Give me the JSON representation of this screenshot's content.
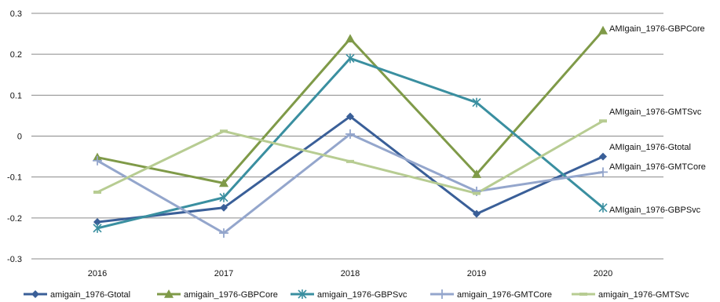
{
  "chart_data": {
    "type": "line",
    "categories": [
      "2016",
      "2017",
      "2018",
      "2019",
      "2020"
    ],
    "ylim": [
      -0.3,
      0.3
    ],
    "yticks": [
      "0.3",
      "0.2",
      "0.1",
      "0",
      "-0.1",
      "-0.2",
      "-0.3"
    ],
    "grid": true,
    "legend_position": "bottom",
    "series": [
      {
        "name": "amigain_1976-Gtotal",
        "end_label": "AMIgain_1976-Gtotal",
        "color": "#3A5F98",
        "marker": "diamond",
        "values": [
          -0.21,
          -0.175,
          0.048,
          -0.19,
          -0.05
        ]
      },
      {
        "name": "amigain_1976-GBPCore",
        "end_label": "AMIgain_1976-GBPCore",
        "color": "#7F9A48",
        "marker": "triangle",
        "values": [
          -0.052,
          -0.115,
          0.238,
          -0.093,
          0.258
        ]
      },
      {
        "name": "amigain_1976-GBPSvc",
        "end_label": "AMIgain_1976-GBPSvc",
        "color": "#3A8FA0",
        "marker": "star",
        "values": [
          -0.225,
          -0.15,
          0.19,
          0.082,
          -0.175
        ]
      },
      {
        "name": "amigain_1976-GMTCore",
        "end_label": "AMIgain_1976-GMTCore",
        "color": "#94A6CC",
        "marker": "plus",
        "values": [
          -0.06,
          -0.237,
          0.005,
          -0.135,
          -0.088
        ]
      },
      {
        "name": "amigain_1976-GMTSvc",
        "end_label": "AMIgain_1976-GMTSvc",
        "color": "#B7CC92",
        "marker": "dash",
        "values": [
          -0.137,
          0.012,
          -0.062,
          -0.14,
          0.037
        ]
      }
    ]
  }
}
